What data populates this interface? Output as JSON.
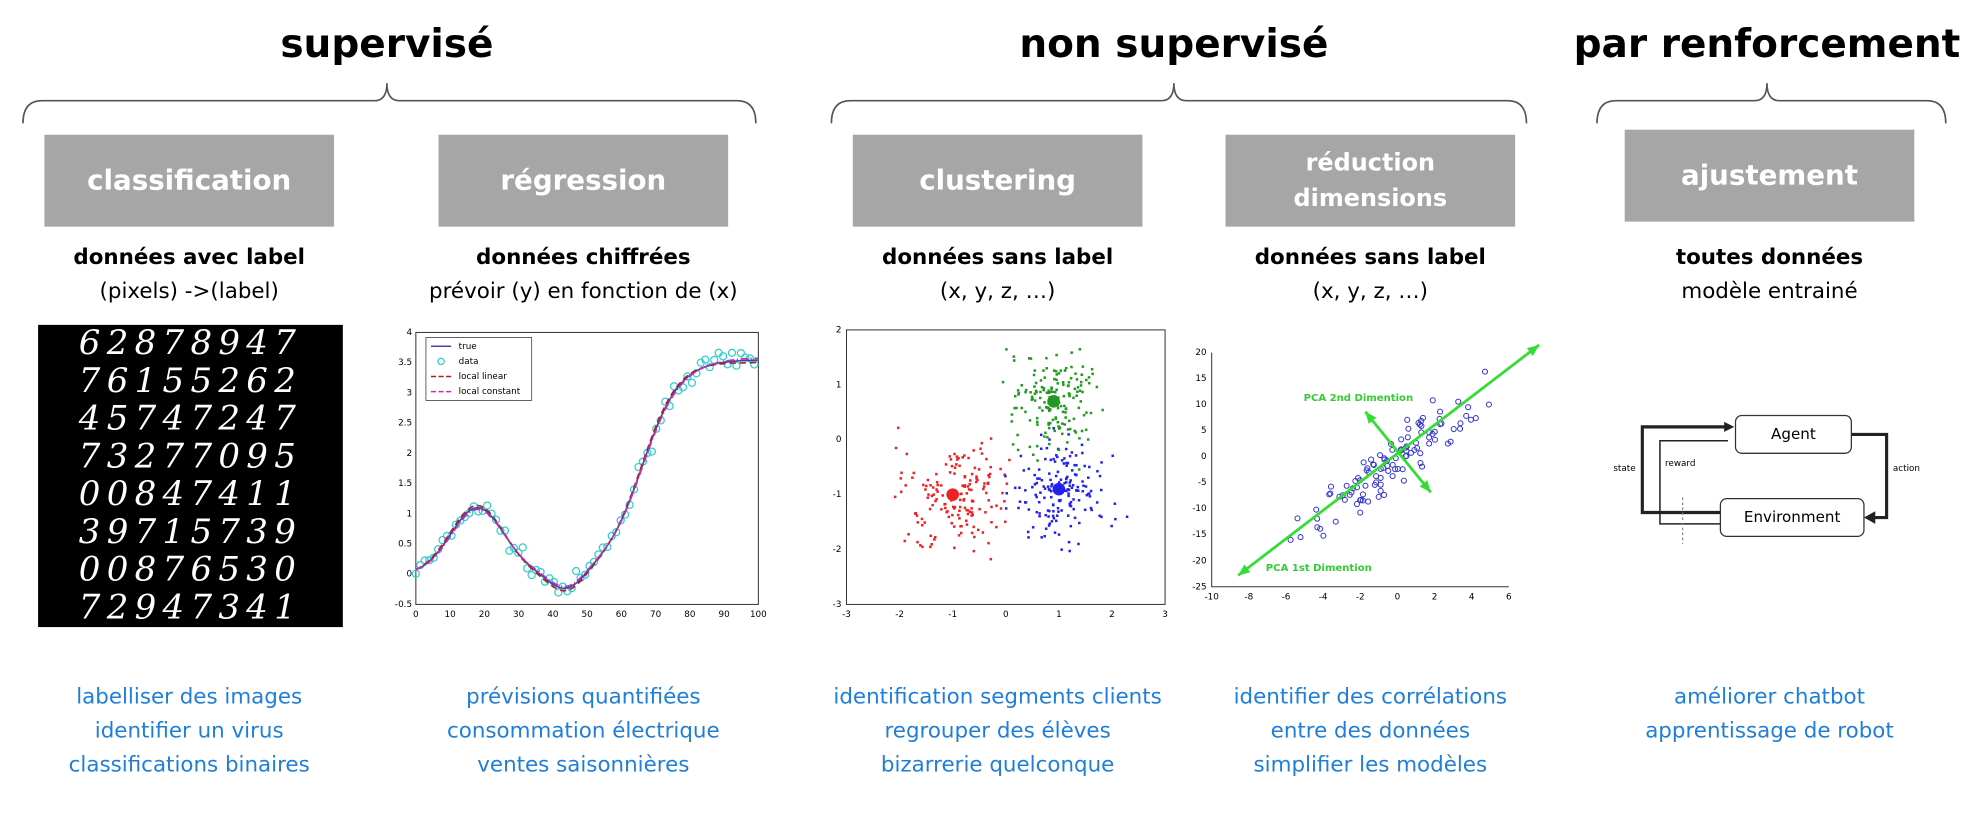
{
  "groups": [
    {
      "title": "supervisé",
      "columns": [
        {
          "box": [
            "classification"
          ],
          "heading": "données avec label",
          "subheading": "(pixels) ->(label)",
          "uses": [
            "labelliser des images",
            "identifier un virus",
            "classifications binaires"
          ]
        },
        {
          "box": [
            "régression"
          ],
          "heading": "données chiffrées",
          "subheading": "prévoir (y) en fonction de (x)",
          "uses": [
            "prévisions quantifiées",
            "consommation électrique",
            "ventes saisonnières"
          ]
        }
      ]
    },
    {
      "title": "non supervisé",
      "columns": [
        {
          "box": [
            "clustering"
          ],
          "heading": "données sans label",
          "subheading": "(x, y, z, …)",
          "uses": [
            "identification segments clients",
            "regrouper des élèves",
            "bizarrerie quelconque"
          ]
        },
        {
          "box": [
            "réduction",
            "dimensions"
          ],
          "heading": "données sans label",
          "subheading": "(x, y, z, …)",
          "uses": [
            "identifier des corrélations",
            "entre des données",
            "simplifier les modèles"
          ]
        }
      ]
    },
    {
      "title": "par renforcement",
      "columns": [
        {
          "box": [
            "ajustement"
          ],
          "heading": "toutes données",
          "subheading": "modèle entrainé",
          "uses": [
            "améliorer chatbot",
            "apprentissage de robot"
          ]
        }
      ]
    }
  ],
  "figures": {
    "digits": [
      "62878947",
      "76155262",
      "45747247",
      "73277095",
      "00847411",
      "39715739",
      "00876530",
      "72947341"
    ],
    "regression": {
      "legend": [
        "true",
        "data",
        "local linear",
        "local constant"
      ],
      "xticks": [
        0,
        10,
        20,
        30,
        40,
        50,
        60,
        70,
        80,
        90,
        100
      ],
      "yticks": [
        -0.5,
        0,
        0.5,
        1,
        1.5,
        2,
        2.5,
        3,
        3.5,
        4
      ]
    },
    "clustering": {
      "xticks": [
        -3,
        -2,
        -1,
        0,
        1,
        2,
        3
      ],
      "yticks": [
        -3,
        -2,
        -1,
        0,
        1,
        2
      ]
    },
    "pca": {
      "first": "PCA 1st Dimention",
      "second": "PCA 2nd Dimention",
      "xticks": [
        -10,
        -8,
        -6,
        -4,
        -2,
        0,
        2,
        4,
        6
      ],
      "yticks": [
        -25,
        -20,
        -15,
        -10,
        -5,
        0,
        5,
        10,
        15,
        20
      ]
    },
    "rl": {
      "agent": "Agent",
      "environment": "Environment",
      "state": "state",
      "reward": "reward",
      "action": "action"
    }
  }
}
